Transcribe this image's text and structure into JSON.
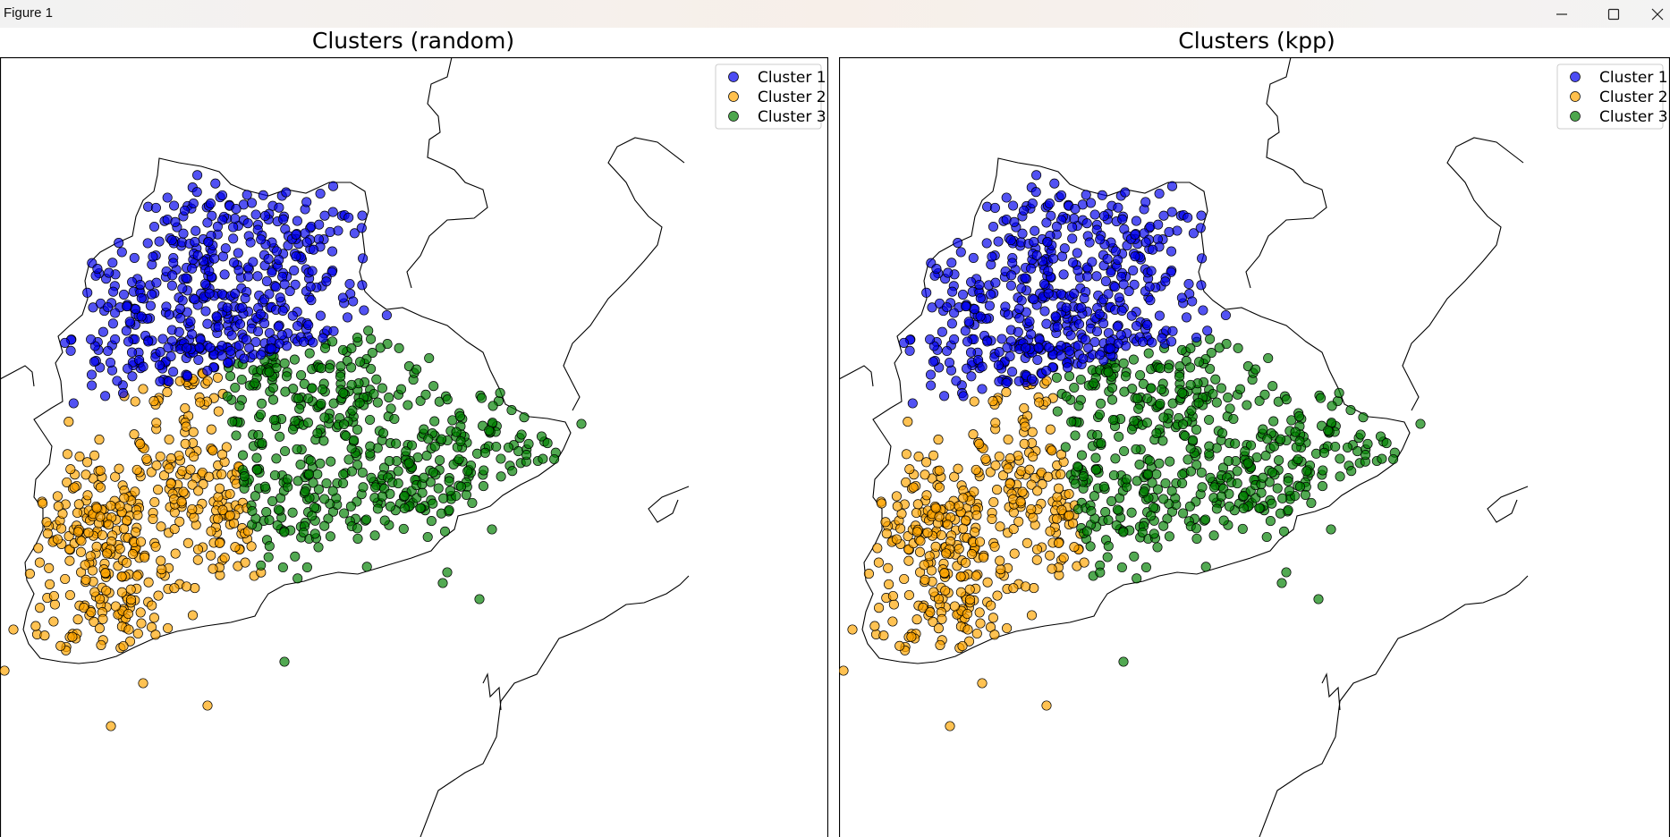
{
  "window": {
    "title": "Figure 1",
    "minimize_icon": "minimize-icon",
    "maximize_icon": "maximize-icon",
    "close_icon": "close-icon"
  },
  "colors": {
    "cluster1": "#0000ee",
    "cluster2": "#ffa500",
    "cluster3": "#008000",
    "border": "#000000"
  },
  "chart_data": [
    {
      "type": "scatter",
      "title": "Clusters (random)",
      "legend_position": "top-right",
      "grid": false,
      "series": [
        {
          "name": "Cluster 1",
          "color": "#0000ee"
        },
        {
          "name": "Cluster 2",
          "color": "#ffa500"
        },
        {
          "name": "Cluster 3",
          "color": "#008000"
        }
      ]
    },
    {
      "type": "scatter",
      "title": "Clusters (kpp)",
      "legend_position": "top-right",
      "grid": false,
      "series": [
        {
          "name": "Cluster 1",
          "color": "#0000ee"
        },
        {
          "name": "Cluster 2",
          "color": "#ffa500"
        },
        {
          "name": "Cluster 3",
          "color": "#008000"
        }
      ]
    }
  ]
}
